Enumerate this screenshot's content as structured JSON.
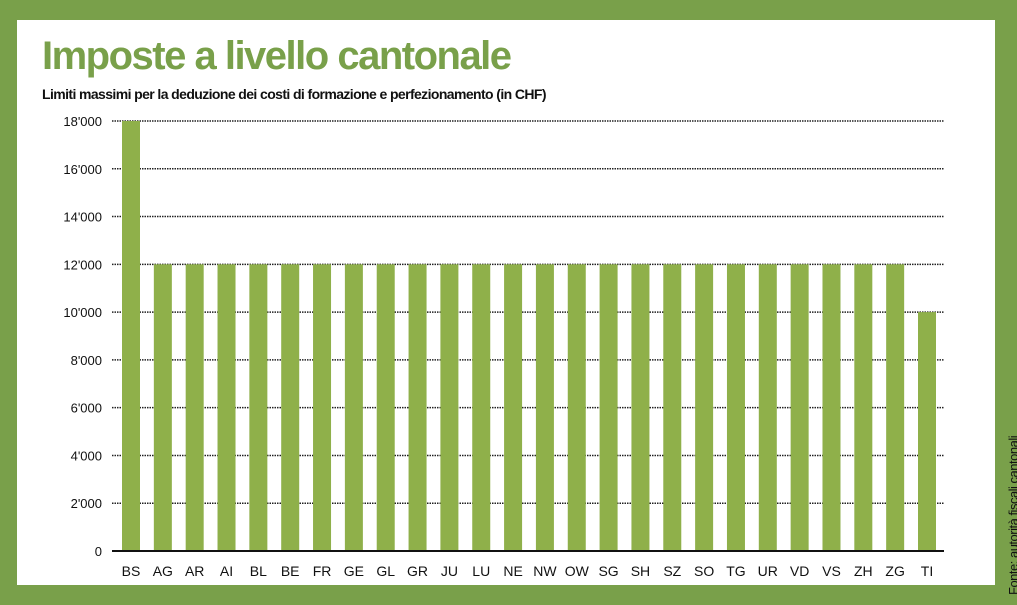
{
  "title": "Imposte a livello cantonale",
  "subtitle": "Limiti massimi per la deduzione dei costi di formazione e perfezionamento (in CHF)",
  "source": "Fonte: autorità fiscali cantonali",
  "colors": {
    "background": "#79a04a",
    "bar": "#8fb04a",
    "title": "#79a04a"
  },
  "chart_data": {
    "type": "bar",
    "title": "Imposte a livello cantonale",
    "subtitle": "Limiti massimi per la deduzione dei costi di formazione e perfezionamento (in CHF)",
    "xlabel": "",
    "ylabel": "",
    "categories": [
      "BS",
      "AG",
      "AR",
      "AI",
      "BL",
      "BE",
      "FR",
      "GE",
      "GL",
      "GR",
      "JU",
      "LU",
      "NE",
      "NW",
      "OW",
      "SG",
      "SH",
      "SZ",
      "SO",
      "TG",
      "UR",
      "VD",
      "VS",
      "ZH",
      "ZG",
      "TI"
    ],
    "values": [
      18000,
      12000,
      12000,
      12000,
      12000,
      12000,
      12000,
      12000,
      12000,
      12000,
      12000,
      12000,
      12000,
      12000,
      12000,
      12000,
      12000,
      12000,
      12000,
      12000,
      12000,
      12000,
      12000,
      12000,
      12000,
      10000
    ],
    "ylim": [
      0,
      18000
    ],
    "yticks": [
      0,
      2000,
      4000,
      6000,
      8000,
      10000,
      12000,
      14000,
      16000,
      18000
    ],
    "ytick_labels": [
      "0",
      "2'000",
      "4'000",
      "6'000",
      "8'000",
      "10'000",
      "12'000",
      "14'000",
      "16'000",
      "18'000"
    ],
    "grid": "horizontal dotted",
    "legend": "none"
  }
}
